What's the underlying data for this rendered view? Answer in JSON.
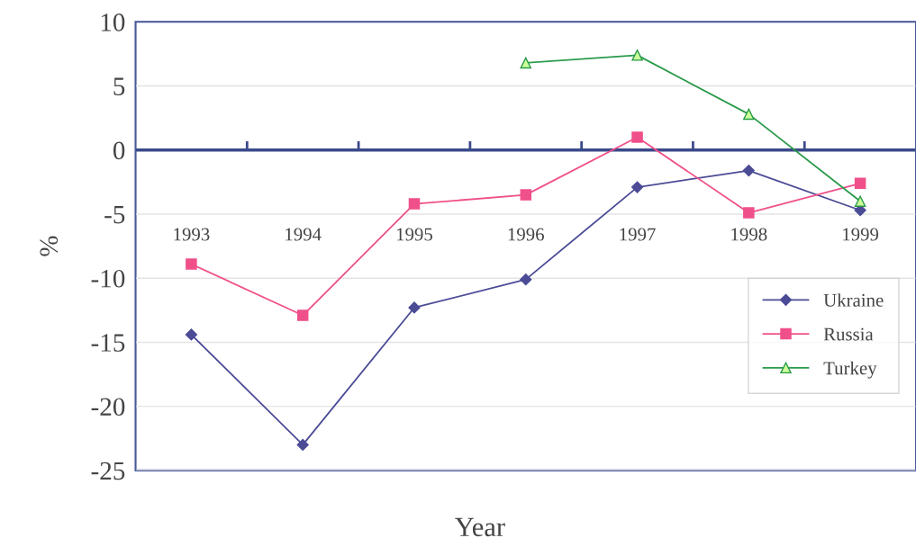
{
  "chart_data": {
    "type": "line",
    "xlabel": "Year",
    "ylabel": "%",
    "categories": [
      "1993",
      "1994",
      "1995",
      "1996",
      "1997",
      "1998",
      "1999"
    ],
    "series": [
      {
        "name": "Ukraine",
        "color": "#4b4b96",
        "marker": "diamond",
        "values": [
          -14.4,
          -23.0,
          -12.3,
          -10.1,
          -2.9,
          -1.6,
          -4.7
        ]
      },
      {
        "name": "Russia",
        "color": "#f0508a",
        "marker": "square",
        "values": [
          -8.9,
          -12.9,
          -4.2,
          -3.5,
          1.0,
          -4.9,
          -2.6
        ]
      },
      {
        "name": "Turkey",
        "color": "#2a9a4a",
        "marker": "triangle",
        "values": [
          null,
          null,
          null,
          6.8,
          7.4,
          2.8,
          -4.0
        ]
      }
    ],
    "ref_lines": [
      {
        "axis": "y",
        "value": 0,
        "color": "#3a4a8a"
      }
    ],
    "ylim": [
      -25,
      10
    ],
    "yticks": [
      -25,
      -20,
      -15,
      -10,
      -5,
      0,
      5,
      10
    ],
    "grid": "y",
    "legend": "right"
  }
}
